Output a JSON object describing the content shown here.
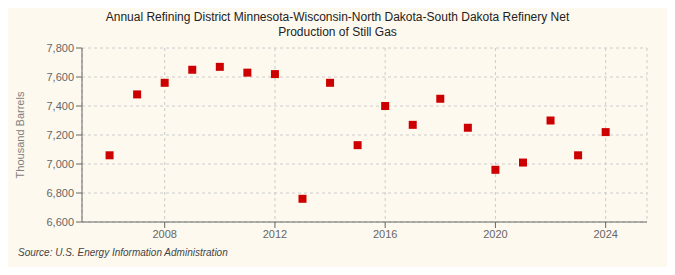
{
  "chart_data": {
    "type": "scatter",
    "title": "Annual Refining District Minnesota-Wisconsin-North Dakota-South Dakota Refinery Net\nProduction of Still Gas",
    "ylabel": "Thousand Barrels",
    "annotations": [
      "Source: U.S. Energy Information Administration"
    ],
    "x": [
      2006,
      2007,
      2008,
      2009,
      2010,
      2011,
      2012,
      2013,
      2014,
      2015,
      2016,
      2017,
      2018,
      2019,
      2020,
      2021,
      2022,
      2023,
      2024
    ],
    "values": [
      7060,
      7480,
      7560,
      7650,
      7670,
      7630,
      7620,
      6760,
      7560,
      7130,
      7400,
      7270,
      7450,
      7250,
      6960,
      7010,
      7300,
      7060,
      7220
    ],
    "xlim": [
      2005,
      2025.5
    ],
    "xticks": [
      2008,
      2012,
      2016,
      2020,
      2024
    ],
    "ylim": [
      6600,
      7800
    ],
    "yticks": [
      {
        "value": 6600,
        "label": "6,600"
      },
      {
        "value": 6800,
        "label": "6,800"
      },
      {
        "value": 7000,
        "label": "7,000"
      },
      {
        "value": 7200,
        "label": "7,200"
      },
      {
        "value": 7400,
        "label": "7,400"
      },
      {
        "value": 7600,
        "label": "7,600"
      },
      {
        "value": 7800,
        "label": "7,800"
      }
    ],
    "color": "#cc0000",
    "marker": "square",
    "grid": true
  }
}
